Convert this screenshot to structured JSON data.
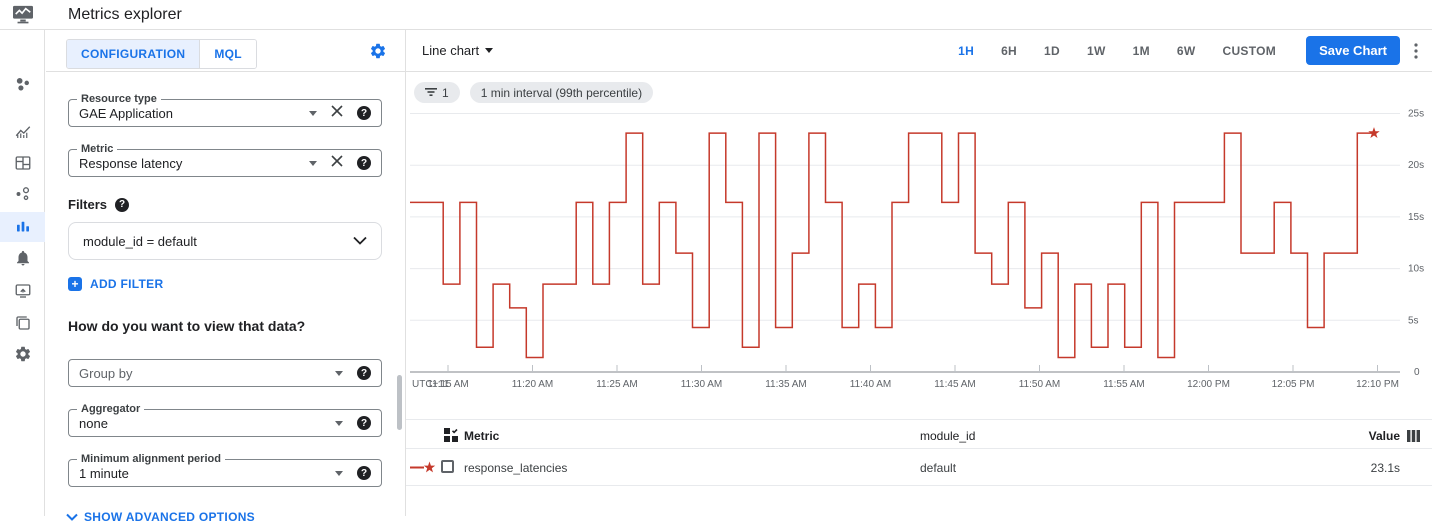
{
  "header": {
    "title": "Metrics explorer"
  },
  "sidebar": {
    "items": [
      {
        "icon": "monitoring-overview-icon",
        "active": false
      },
      {
        "icon": "metrics-trend-icon",
        "active": false
      },
      {
        "icon": "dashboards-icon",
        "active": false
      },
      {
        "icon": "services-icon",
        "active": false
      },
      {
        "icon": "metrics-explorer-icon",
        "active": true
      },
      {
        "icon": "alerting-bell-icon",
        "active": false
      },
      {
        "icon": "uptime-checks-icon",
        "active": false
      },
      {
        "icon": "groups-icon",
        "active": false
      },
      {
        "icon": "settings-gear-icon",
        "active": false
      }
    ]
  },
  "config": {
    "tabs": [
      {
        "label": "CONFIGURATION",
        "active": true
      },
      {
        "label": "MQL",
        "active": false
      }
    ],
    "fields": {
      "resource_type": {
        "label": "Resource type",
        "value": "GAE Application"
      },
      "metric": {
        "label": "Metric",
        "value": "Response latency"
      },
      "group_by": {
        "placeholder": "Group by"
      },
      "aggregator": {
        "label": "Aggregator",
        "value": "none"
      },
      "min_alignment_period": {
        "label": "Minimum alignment period",
        "value": "1 minute"
      }
    },
    "filters": {
      "heading": "Filters",
      "items": [
        {
          "text": "module_id = default"
        }
      ],
      "add_label": "ADD FILTER"
    },
    "view_heading": "How do you want to view that data?",
    "advanced_label": "SHOW ADVANCED OPTIONS"
  },
  "chartToolbar": {
    "chart_type": "Line chart",
    "ranges": [
      "1H",
      "6H",
      "1D",
      "1W",
      "1M",
      "6W",
      "CUSTOM"
    ],
    "active_range": "1H",
    "save_label": "Save Chart"
  },
  "chips": {
    "filter_count": "1",
    "interval": "1 min interval (99th percentile)"
  },
  "icons": {
    "help_glyph": "?",
    "plus_glyph": "+"
  },
  "chart_data": {
    "type": "line",
    "x_prefix": "UTC+11",
    "x_ticks": [
      "11:15 AM",
      "11:20 AM",
      "11:25 AM",
      "11:30 AM",
      "11:35 AM",
      "11:40 AM",
      "11:45 AM",
      "11:50 AM",
      "11:55 AM",
      "12:00 PM",
      "12:05 PM",
      "12:10 PM"
    ],
    "y_ticks": [
      {
        "label": "25s",
        "value": 25
      },
      {
        "label": "20s",
        "value": 20
      },
      {
        "label": "15s",
        "value": 15
      },
      {
        "label": "10s",
        "value": 10
      },
      {
        "label": "5s",
        "value": 5
      },
      {
        "label": "0",
        "value": 0
      }
    ],
    "ylim": [
      0,
      26
    ],
    "grid": true,
    "series": [
      {
        "name": "response_latencies",
        "module_id": "default",
        "color": "#c5392b",
        "marker": "star",
        "unit": "s",
        "interval_minutes": 1,
        "start_time": "11:12 AM",
        "values": [
          16.4,
          16.4,
          8.5,
          16.4,
          2.4,
          8.5,
          6.2,
          1.4,
          8.5,
          8.5,
          16.4,
          8.5,
          16.4,
          23.1,
          8.5,
          16.4,
          11.5,
          4.3,
          23.1,
          16.4,
          2.4,
          23.1,
          4.3,
          11.5,
          23.1,
          16.4,
          4.3,
          8.5,
          4.3,
          16.4,
          23.1,
          23.1,
          16.4,
          23.1,
          11.5,
          8.5,
          16.4,
          6.2,
          11.5,
          1.4,
          8.5,
          2.4,
          8.5,
          2.4,
          16.4,
          1.4,
          16.4,
          16.4,
          16.4,
          23.1,
          11.5,
          11.5,
          16.4,
          11.5,
          4.3,
          11.5,
          11.5,
          23.1,
          23.1
        ]
      }
    ]
  },
  "table": {
    "columns": [
      {
        "label": "Metric"
      },
      {
        "label": "module_id"
      },
      {
        "label": "Value"
      }
    ],
    "rows": [
      {
        "metric": "response_latencies",
        "module_id": "default",
        "value": "23.1s"
      }
    ]
  }
}
